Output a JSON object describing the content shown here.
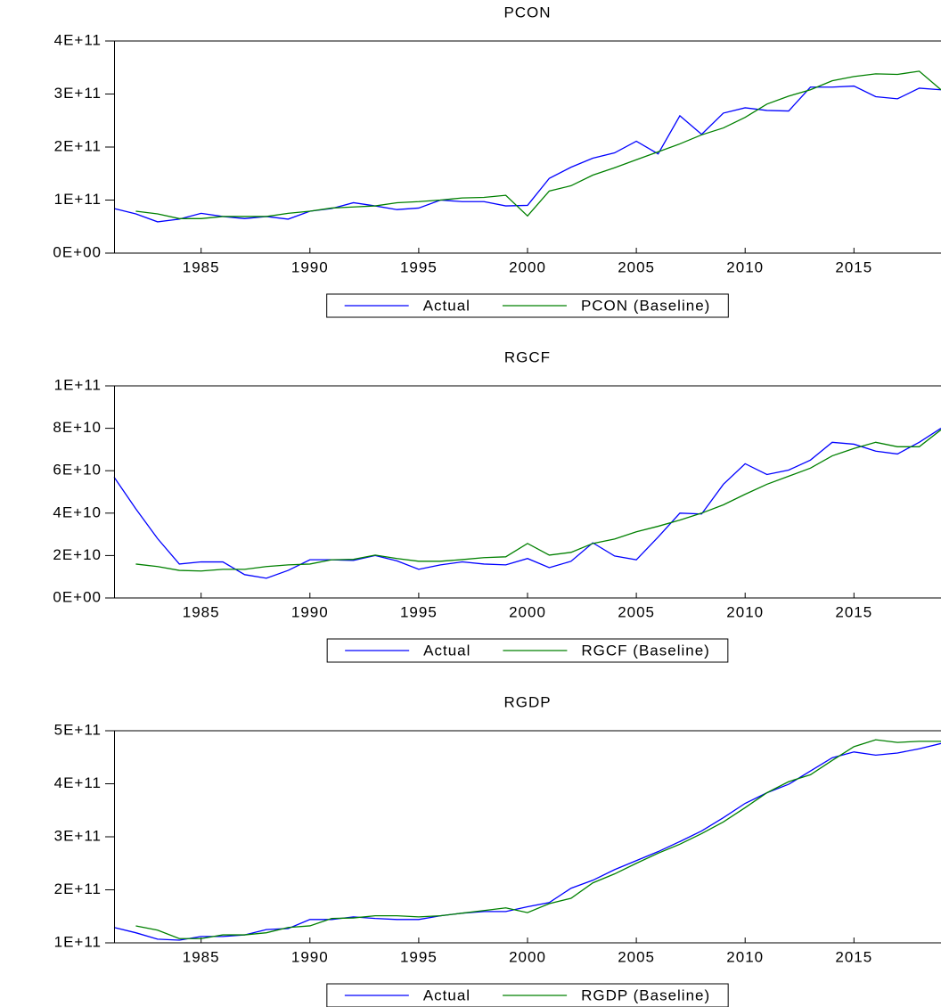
{
  "chart_data": [
    {
      "type": "line",
      "title": "PCON",
      "legend": "bottom",
      "x": [
        1981,
        1982,
        1983,
        1984,
        1985,
        1986,
        1987,
        1988,
        1989,
        1990,
        1991,
        1992,
        1993,
        1994,
        1995,
        1996,
        1997,
        1998,
        1999,
        2000,
        2001,
        2002,
        2003,
        2004,
        2005,
        2006,
        2007,
        2008,
        2009,
        2010,
        2011,
        2012,
        2013,
        2014,
        2015,
        2016,
        2017,
        2018,
        2019
      ],
      "xlim": [
        1981,
        2019
      ],
      "xticks": [
        1985,
        1990,
        1995,
        2000,
        2005,
        2010,
        2015
      ],
      "ylim": [
        0,
        400000000000.0
      ],
      "yticks": [
        {
          "value": 0,
          "label": "0E+00"
        },
        {
          "value": 100000000000.0,
          "label": "1E+11"
        },
        {
          "value": 200000000000.0,
          "label": "2E+11"
        },
        {
          "value": 300000000000.0,
          "label": "3E+11"
        },
        {
          "value": 400000000000.0,
          "label": "4E+11"
        }
      ],
      "series": [
        {
          "name": "Actual",
          "color": "#0000ff",
          "values": [
            84000000000.0,
            74000000000.0,
            59000000000.0,
            64000000000.0,
            75000000000.0,
            69000000000.0,
            65000000000.0,
            69000000000.0,
            64000000000.0,
            79000000000.0,
            84000000000.0,
            95000000000.0,
            89000000000.0,
            82000000000.0,
            85000000000.0,
            100000000000.0,
            97000000000.0,
            97000000000.0,
            89000000000.0,
            90000000000.0,
            141000000000.0,
            162000000000.0,
            179000000000.0,
            189000000000.0,
            211000000000.0,
            187000000000.0,
            259000000000.0,
            224000000000.0,
            264000000000.0,
            274000000000.0,
            269000000000.0,
            268000000000.0,
            313000000000.0,
            313000000000.0,
            315000000000.0,
            295000000000.0,
            291000000000.0,
            311000000000.0,
            308000000000.0
          ]
        },
        {
          "name": "PCON (Baseline)",
          "color": "#008000",
          "values": [
            null,
            79000000000.0,
            74000000000.0,
            65000000000.0,
            65000000000.0,
            69000000000.0,
            69000000000.0,
            69000000000.0,
            75000000000.0,
            79000000000.0,
            85000000000.0,
            87000000000.0,
            89000000000.0,
            95000000000.0,
            97000000000.0,
            100000000000.0,
            104000000000.0,
            105000000000.0,
            109000000000.0,
            70000000000.0,
            117000000000.0,
            127000000000.0,
            147000000000.0,
            161000000000.0,
            176000000000.0,
            191000000000.0,
            206000000000.0,
            223000000000.0,
            236000000000.0,
            256000000000.0,
            281000000000.0,
            296000000000.0,
            308000000000.0,
            325000000000.0,
            333000000000.0,
            338000000000.0,
            337000000000.0,
            343000000000.0,
            308000000000.0
          ]
        }
      ]
    },
    {
      "type": "line",
      "title": "RGCF",
      "legend": "bottom",
      "x": [
        1981,
        1982,
        1983,
        1984,
        1985,
        1986,
        1987,
        1988,
        1989,
        1990,
        1991,
        1992,
        1993,
        1994,
        1995,
        1996,
        1997,
        1998,
        1999,
        2000,
        2001,
        2002,
        2003,
        2004,
        2005,
        2006,
        2007,
        2008,
        2009,
        2010,
        2011,
        2012,
        2013,
        2014,
        2015,
        2016,
        2017,
        2018,
        2019
      ],
      "xlim": [
        1981,
        2019
      ],
      "xticks": [
        1985,
        1990,
        1995,
        2000,
        2005,
        2010,
        2015
      ],
      "ylim": [
        0,
        100000000000.0
      ],
      "yticks": [
        {
          "value": 0,
          "label": "0E+00"
        },
        {
          "value": 20000000000.0,
          "label": "2E+10"
        },
        {
          "value": 40000000000.0,
          "label": "4E+10"
        },
        {
          "value": 60000000000.0,
          "label": "6E+10"
        },
        {
          "value": 80000000000.0,
          "label": "8E+10"
        },
        {
          "value": 100000000000.0,
          "label": "1E+11"
        }
      ],
      "series": [
        {
          "name": "Actual",
          "color": "#0000ff",
          "values": [
            57000000000.0,
            42000000000.0,
            28000000000.0,
            16000000000.0,
            17000000000.0,
            17000000000.0,
            11000000000.0,
            9300000000.0,
            13000000000.0,
            18000000000.0,
            18000000000.0,
            17700000000.0,
            20000000000.0,
            17500000000.0,
            13500000000.0,
            15600000000.0,
            17000000000.0,
            16000000000.0,
            15600000000.0,
            18600000000.0,
            14300000000.0,
            17300000000.0,
            26000000000.0,
            19800000000.0,
            18000000000.0,
            28700000000.0,
            40000000000.0,
            39600000000.0,
            53600000000.0,
            63300000000.0,
            58200000000.0,
            60300000000.0,
            65000000000.0,
            73400000000.0,
            72500000000.0,
            69200000000.0,
            67900000000.0,
            73400000000.0,
            80000000000.0
          ]
        },
        {
          "name": "RGCF (Baseline)",
          "color": "#008000",
          "values": [
            null,
            16000000000.0,
            14800000000.0,
            13000000000.0,
            12700000000.0,
            13500000000.0,
            13500000000.0,
            14800000000.0,
            15600000000.0,
            16000000000.0,
            18000000000.0,
            18200000000.0,
            20200000000.0,
            18600000000.0,
            17300000000.0,
            17300000000.0,
            18100000000.0,
            19000000000.0,
            19400000000.0,
            25700000000.0,
            20200000000.0,
            21500000000.0,
            25700000000.0,
            27800000000.0,
            31200000000.0,
            33800000000.0,
            36700000000.0,
            40000000000.0,
            43900000000.0,
            48900000000.0,
            53600000000.0,
            57400000000.0,
            61200000000.0,
            67000000000.0,
            70500000000.0,
            73400000000.0,
            71300000000.0,
            71300000000.0,
            79300000000.0
          ]
        }
      ]
    },
    {
      "type": "line",
      "title": "RGDP",
      "legend": "bottom",
      "x": [
        1981,
        1982,
        1983,
        1984,
        1985,
        1986,
        1987,
        1988,
        1989,
        1990,
        1991,
        1992,
        1993,
        1994,
        1995,
        1996,
        1997,
        1998,
        1999,
        2000,
        2001,
        2002,
        2003,
        2004,
        2005,
        2006,
        2007,
        2008,
        2009,
        2010,
        2011,
        2012,
        2013,
        2014,
        2015,
        2016,
        2017,
        2018,
        2019
      ],
      "xlim": [
        1981,
        2019
      ],
      "xticks": [
        1985,
        1990,
        1995,
        2000,
        2005,
        2010,
        2015
      ],
      "ylim": [
        100000000000.0,
        500000000000.0
      ],
      "yticks": [
        {
          "value": 100000000000.0,
          "label": "1E+11"
        },
        {
          "value": 200000000000.0,
          "label": "2E+11"
        },
        {
          "value": 300000000000.0,
          "label": "3E+11"
        },
        {
          "value": 400000000000.0,
          "label": "4E+11"
        },
        {
          "value": 500000000000.0,
          "label": "5E+11"
        }
      ],
      "series": [
        {
          "name": "Actual",
          "color": "#0000ff",
          "values": [
            129000000000.0,
            119000000000.0,
            107000000000.0,
            105000000000.0,
            112000000000.0,
            112000000000.0,
            115000000000.0,
            125000000000.0,
            127000000000.0,
            144000000000.0,
            144000000000.0,
            149000000000.0,
            146000000000.0,
            144000000000.0,
            144000000000.0,
            151000000000.0,
            156000000000.0,
            159000000000.0,
            159000000000.0,
            168000000000.0,
            176000000000.0,
            203000000000.0,
            218000000000.0,
            238000000000.0,
            255000000000.0,
            272000000000.0,
            291000000000.0,
            311000000000.0,
            336000000000.0,
            363000000000.0,
            383000000000.0,
            399000000000.0,
            424000000000.0,
            449000000000.0,
            460000000000.0,
            454000000000.0,
            458000000000.0,
            466000000000.0,
            476000000000.0
          ]
        },
        {
          "name": "RGDP (Baseline)",
          "color": "#008000",
          "values": [
            null,
            132000000000.0,
            124000000000.0,
            108000000000.0,
            108000000000.0,
            115000000000.0,
            115000000000.0,
            119000000000.0,
            129000000000.0,
            132000000000.0,
            146000000000.0,
            147000000000.0,
            151000000000.0,
            151000000000.0,
            149000000000.0,
            151000000000.0,
            156000000000.0,
            161000000000.0,
            166000000000.0,
            157000000000.0,
            174000000000.0,
            184000000000.0,
            213000000000.0,
            230000000000.0,
            250000000000.0,
            269000000000.0,
            286000000000.0,
            306000000000.0,
            328000000000.0,
            355000000000.0,
            383000000000.0,
            404000000000.0,
            417000000000.0,
            444000000000.0,
            470000000000.0,
            483000000000.0,
            478000000000.0,
            480000000000.0,
            480000000000.0
          ]
        }
      ]
    }
  ]
}
